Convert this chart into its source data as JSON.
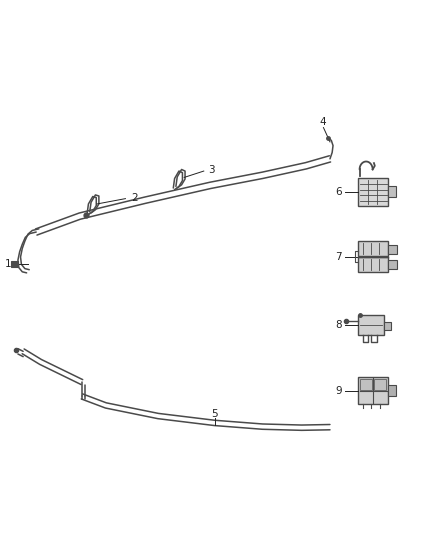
{
  "bg_color": "#ffffff",
  "line_color": "#4a4a4a",
  "label_color": "#222222",
  "figsize": [
    4.38,
    5.33
  ],
  "dpi": 100,
  "top_tube": {
    "x": [
      0.08,
      0.15,
      0.28,
      0.42,
      0.56,
      0.68,
      0.76
    ],
    "y": [
      0.565,
      0.595,
      0.63,
      0.66,
      0.685,
      0.705,
      0.72
    ]
  },
  "bot_tube": {
    "x": [
      0.08,
      0.2,
      0.35,
      0.5,
      0.62,
      0.7,
      0.76
    ],
    "y": [
      0.31,
      0.295,
      0.268,
      0.245,
      0.232,
      0.228,
      0.228
    ]
  }
}
